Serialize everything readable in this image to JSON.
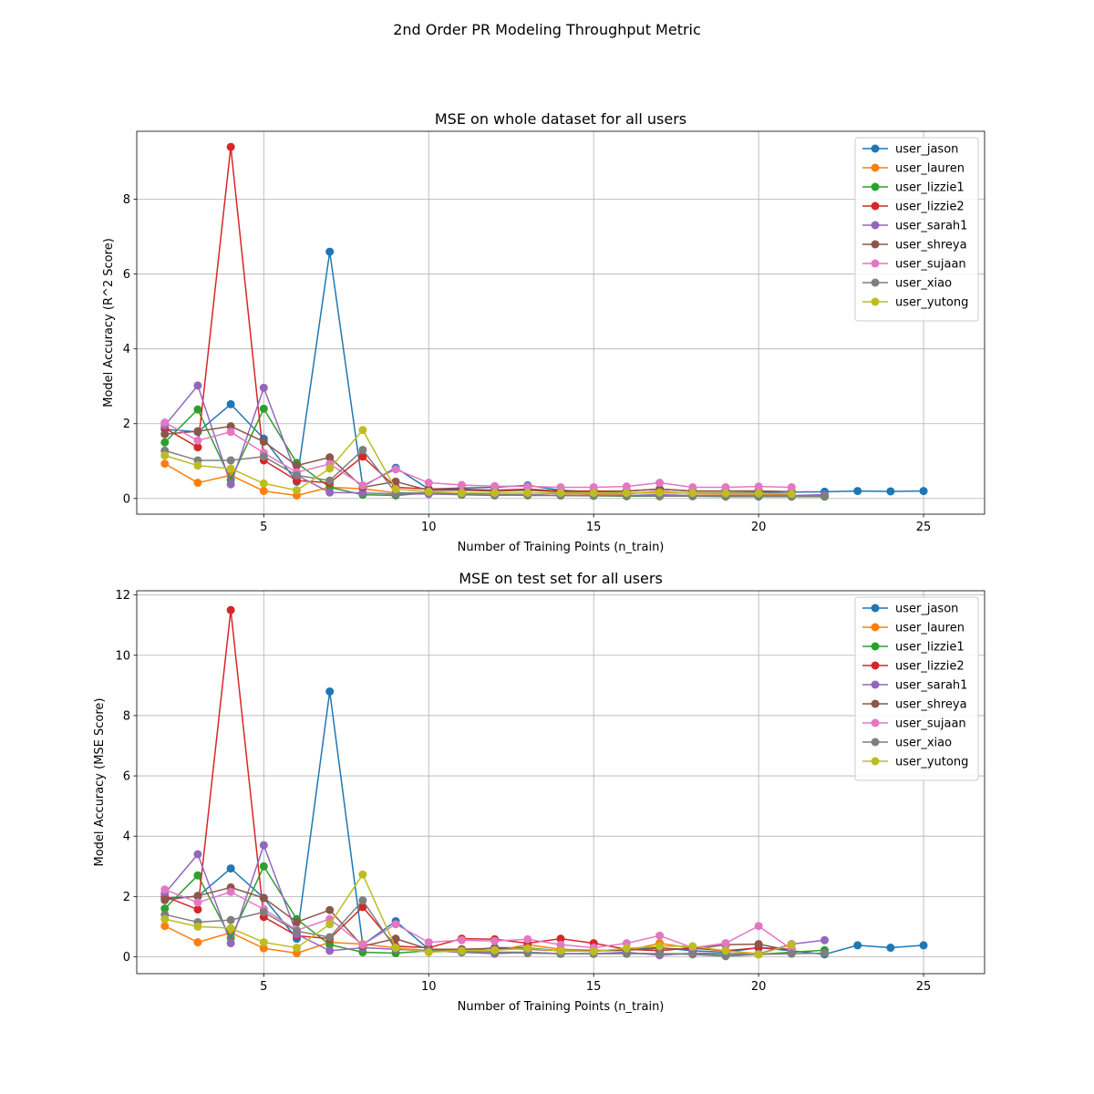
{
  "figure": {
    "suptitle": "2nd Order PR Modeling Throughput Metric"
  },
  "colors": {
    "user_jason": "#1f77b4",
    "user_lauren": "#ff7f0e",
    "user_lizzie1": "#2ca02c",
    "user_lizzie2": "#d62728",
    "user_sarah1": "#9467bd",
    "user_shreya": "#8c564b",
    "user_sujaan": "#e377c2",
    "user_xiao": "#7f7f7f",
    "user_yutong": "#bcbd22"
  },
  "chart_data": [
    {
      "type": "line",
      "title": "MSE on whole dataset for all users",
      "xlabel": "Number of Training Points (n_train)",
      "ylabel": "Model Accuracy (R^2 Score)",
      "xlim": [
        1.15,
        26.85
      ],
      "ylim": [
        -0.42,
        9.82
      ],
      "xticks": [
        5,
        10,
        15,
        20,
        25
      ],
      "yticks": [
        0,
        2,
        4,
        6,
        8
      ],
      "grid": true,
      "legend": "top-right",
      "series": [
        {
          "name": "user_jason",
          "x": [
            2,
            3,
            4,
            5,
            6,
            7,
            8,
            9,
            10,
            11,
            12,
            13,
            14,
            15,
            16,
            17,
            18,
            19,
            20,
            21,
            22,
            23,
            24,
            25
          ],
          "y": [
            1.85,
            1.78,
            2.52,
            1.6,
            0.45,
            6.6,
            0.32,
            0.82,
            0.25,
            0.28,
            0.3,
            0.35,
            0.22,
            0.18,
            0.15,
            0.15,
            0.15,
            0.15,
            0.16,
            0.17,
            0.18,
            0.2,
            0.19,
            0.2
          ]
        },
        {
          "name": "user_lauren",
          "x": [
            2,
            3,
            4,
            5,
            6,
            7,
            8,
            9,
            10,
            11,
            12,
            13,
            14,
            15,
            16,
            17,
            18,
            19,
            20,
            21
          ],
          "y": [
            0.93,
            0.42,
            0.62,
            0.2,
            0.08,
            0.3,
            0.26,
            0.15,
            0.12,
            0.15,
            0.14,
            0.15,
            0.13,
            0.12,
            0.12,
            0.2,
            0.13,
            0.12,
            0.12,
            0.1
          ]
        },
        {
          "name": "user_lizzie1",
          "x": [
            2,
            3,
            4,
            5,
            6,
            7,
            8,
            9,
            10,
            11,
            12,
            13,
            14,
            15,
            16,
            17,
            18,
            19,
            20,
            21,
            22
          ],
          "y": [
            1.5,
            2.38,
            0.5,
            2.4,
            0.95,
            0.3,
            0.1,
            0.08,
            0.15,
            0.12,
            0.1,
            0.1,
            0.08,
            0.07,
            0.06,
            0.06,
            0.06,
            0.05,
            0.05,
            0.05,
            0.05
          ]
        },
        {
          "name": "user_lizzie2",
          "x": [
            2,
            3,
            4,
            5,
            6,
            7,
            8,
            9,
            10,
            11,
            12,
            13,
            14,
            15,
            16,
            17,
            18,
            19,
            20,
            21
          ],
          "y": [
            1.88,
            1.37,
            9.4,
            1.02,
            0.48,
            0.42,
            1.12,
            0.3,
            0.25,
            0.25,
            0.22,
            0.25,
            0.2,
            0.2,
            0.2,
            0.25,
            0.2,
            0.2,
            0.2,
            0.18
          ]
        },
        {
          "name": "user_sarah1",
          "x": [
            2,
            3,
            4,
            5,
            6,
            7,
            8,
            9,
            10,
            11,
            12,
            13,
            14,
            15,
            16,
            17,
            18,
            19,
            20,
            21,
            22
          ],
          "y": [
            1.95,
            3.02,
            0.38,
            2.96,
            0.62,
            0.16,
            0.15,
            0.12,
            0.12,
            0.1,
            0.08,
            0.1,
            0.08,
            0.08,
            0.08,
            0.1,
            0.08,
            0.08,
            0.08,
            0.08,
            0.1
          ]
        },
        {
          "name": "user_shreya",
          "x": [
            2,
            3,
            4,
            5,
            6,
            7,
            8,
            9,
            10,
            11,
            12,
            13,
            14,
            15,
            16,
            17,
            18,
            19,
            20,
            21
          ],
          "y": [
            1.72,
            1.8,
            1.93,
            1.52,
            0.88,
            1.1,
            0.3,
            0.45,
            0.22,
            0.22,
            0.2,
            0.22,
            0.18,
            0.18,
            0.2,
            0.25,
            0.2,
            0.2,
            0.2,
            0.18
          ]
        },
        {
          "name": "user_sujaan",
          "x": [
            2,
            3,
            4,
            5,
            6,
            7,
            8,
            9,
            10,
            11,
            12,
            13,
            14,
            15,
            16,
            17,
            18,
            19,
            20,
            21
          ],
          "y": [
            2.03,
            1.55,
            1.78,
            1.22,
            0.7,
            0.92,
            0.35,
            0.78,
            0.42,
            0.36,
            0.33,
            0.32,
            0.3,
            0.3,
            0.32,
            0.42,
            0.3,
            0.3,
            0.32,
            0.3
          ]
        },
        {
          "name": "user_xiao",
          "x": [
            2,
            3,
            4,
            5,
            6,
            7,
            8,
            9,
            10,
            11,
            12,
            13,
            14,
            15,
            16,
            17,
            18,
            19,
            20,
            21,
            22
          ],
          "y": [
            1.28,
            1.02,
            1.02,
            1.12,
            0.62,
            0.48,
            1.3,
            0.15,
            0.15,
            0.1,
            0.1,
            0.08,
            0.08,
            0.08,
            0.08,
            0.06,
            0.06,
            0.06,
            0.06,
            0.06,
            0.06
          ]
        },
        {
          "name": "user_yutong",
          "x": [
            2,
            3,
            4,
            5,
            6,
            7,
            8,
            9,
            10,
            11,
            12,
            13,
            14,
            15,
            16,
            17,
            18,
            19,
            20,
            21
          ],
          "y": [
            1.15,
            0.88,
            0.8,
            0.4,
            0.22,
            0.8,
            1.83,
            0.25,
            0.18,
            0.15,
            0.15,
            0.15,
            0.15,
            0.15,
            0.15,
            0.16,
            0.15,
            0.14,
            0.14,
            0.12
          ]
        }
      ]
    },
    {
      "type": "line",
      "title": "MSE on test set for all users",
      "xlabel": "Number of Training Points (n_train)",
      "ylabel": "Model Accuracy (MSE Score)",
      "xlim": [
        1.15,
        26.85
      ],
      "ylim": [
        -0.56,
        12.14
      ],
      "xticks": [
        5,
        10,
        15,
        20,
        25
      ],
      "yticks": [
        0,
        2,
        4,
        6,
        8,
        10,
        12
      ],
      "grid": true,
      "legend": "top-right",
      "series": [
        {
          "name": "user_jason",
          "x": [
            2,
            3,
            4,
            5,
            6,
            7,
            8,
            9,
            10,
            11,
            12,
            13,
            14,
            15,
            16,
            17,
            18,
            19,
            20,
            21,
            22,
            23,
            24,
            25
          ],
          "y": [
            1.95,
            2.0,
            2.93,
            1.95,
            0.6,
            8.8,
            0.4,
            1.18,
            0.25,
            0.2,
            0.3,
            0.3,
            0.2,
            0.18,
            0.25,
            0.3,
            0.2,
            0.15,
            0.3,
            0.2,
            0.08,
            0.38,
            0.3,
            0.38
          ]
        },
        {
          "name": "user_lauren",
          "x": [
            2,
            3,
            4,
            5,
            6,
            7,
            8,
            9,
            10,
            11,
            12,
            13,
            14,
            15,
            16,
            17,
            18,
            19,
            20,
            21
          ],
          "y": [
            1.02,
            0.48,
            0.8,
            0.28,
            0.12,
            0.48,
            0.42,
            0.3,
            0.2,
            0.25,
            0.2,
            0.4,
            0.25,
            0.22,
            0.2,
            0.45,
            0.28,
            0.2,
            0.1,
            0.4
          ]
        },
        {
          "name": "user_lizzie1",
          "x": [
            2,
            3,
            4,
            5,
            6,
            7,
            8,
            9,
            10,
            11,
            12,
            13,
            14,
            15,
            16,
            17,
            18,
            19,
            20,
            21,
            22
          ],
          "y": [
            1.6,
            2.7,
            0.62,
            3.0,
            1.25,
            0.4,
            0.15,
            0.12,
            0.2,
            0.18,
            0.15,
            0.15,
            0.1,
            0.1,
            0.12,
            0.1,
            0.1,
            0.08,
            0.08,
            0.15,
            0.22
          ]
        },
        {
          "name": "user_lizzie2",
          "x": [
            2,
            3,
            4,
            5,
            6,
            7,
            8,
            9,
            10,
            11,
            12,
            13,
            14,
            15,
            16,
            17,
            18,
            19,
            20,
            21
          ],
          "y": [
            2.0,
            1.57,
            11.5,
            1.32,
            0.7,
            0.6,
            1.65,
            0.35,
            0.3,
            0.6,
            0.58,
            0.45,
            0.6,
            0.45,
            0.25,
            0.2,
            0.3,
            0.2,
            0.3,
            0.25
          ]
        },
        {
          "name": "user_sarah1",
          "x": [
            2,
            3,
            4,
            5,
            6,
            7,
            8,
            9,
            10,
            11,
            12,
            13,
            14,
            15,
            16,
            17,
            18,
            19,
            20,
            21,
            22
          ],
          "y": [
            2.1,
            3.4,
            0.45,
            3.7,
            0.75,
            0.2,
            0.3,
            0.25,
            0.2,
            0.15,
            0.1,
            0.15,
            0.1,
            0.1,
            0.15,
            0.05,
            0.12,
            0.1,
            0.1,
            0.42,
            0.55
          ]
        },
        {
          "name": "user_shreya",
          "x": [
            2,
            3,
            4,
            5,
            6,
            7,
            8,
            9,
            10,
            11,
            12,
            13,
            14,
            15,
            16,
            17,
            18,
            19,
            20,
            21
          ],
          "y": [
            1.88,
            2.02,
            2.3,
            1.95,
            1.15,
            1.55,
            0.35,
            0.6,
            0.25,
            0.25,
            0.28,
            0.25,
            0.2,
            0.2,
            0.22,
            0.28,
            0.25,
            0.4,
            0.42,
            0.2
          ]
        },
        {
          "name": "user_sujaan",
          "x": [
            2,
            3,
            4,
            5,
            6,
            7,
            8,
            9,
            10,
            11,
            12,
            13,
            14,
            15,
            16,
            17,
            18,
            19,
            20,
            21
          ],
          "y": [
            2.23,
            1.8,
            2.15,
            1.58,
            0.88,
            1.25,
            0.4,
            1.08,
            0.48,
            0.55,
            0.52,
            0.58,
            0.4,
            0.3,
            0.45,
            0.7,
            0.3,
            0.45,
            1.02,
            0.25
          ]
        },
        {
          "name": "user_xiao",
          "x": [
            2,
            3,
            4,
            5,
            6,
            7,
            8,
            9,
            10,
            11,
            12,
            13,
            14,
            15,
            16,
            17,
            18,
            19,
            20,
            21,
            22
          ],
          "y": [
            1.4,
            1.15,
            1.22,
            1.48,
            0.85,
            0.65,
            1.87,
            0.25,
            0.2,
            0.15,
            0.15,
            0.12,
            0.1,
            0.1,
            0.1,
            0.1,
            0.08,
            0.02,
            0.08,
            0.1,
            0.12
          ]
        },
        {
          "name": "user_yutong",
          "x": [
            2,
            3,
            4,
            5,
            6,
            7,
            8,
            9,
            10,
            11,
            12,
            13,
            14,
            15,
            16,
            17,
            18,
            19,
            20,
            21
          ],
          "y": [
            1.25,
            1.0,
            0.95,
            0.48,
            0.3,
            1.08,
            2.73,
            0.3,
            0.15,
            0.2,
            0.22,
            0.28,
            0.2,
            0.18,
            0.28,
            0.35,
            0.35,
            0.2,
            0.08,
            0.4
          ]
        }
      ]
    }
  ]
}
